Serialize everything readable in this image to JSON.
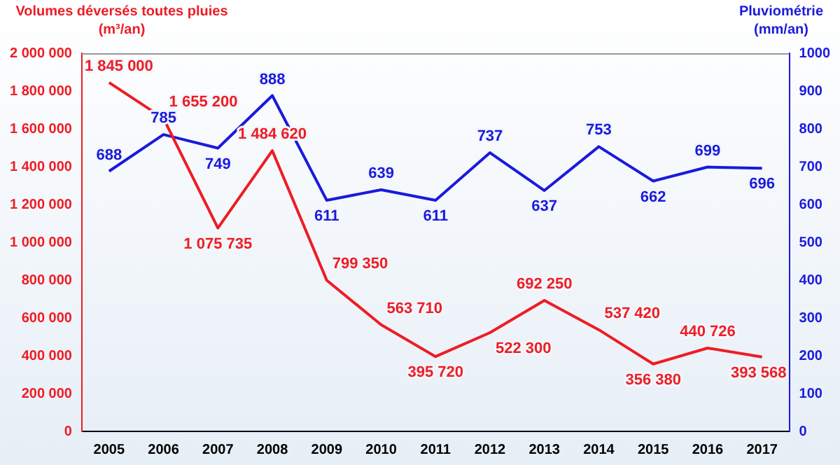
{
  "chart_data": {
    "type": "line",
    "ylabel": "Volumes déversés toutes pluies (m³/an)",
    "y2label": "Pluviométrie (mm/an)",
    "categories": [
      "2005",
      "2006",
      "2007",
      "2008",
      "2009",
      "2010",
      "2011",
      "2012",
      "2013",
      "2014",
      "2015",
      "2016",
      "2017"
    ],
    "series": [
      {
        "color": "#ee1c25",
        "values": [
          1845000,
          1655200,
          1075735,
          1484620,
          799350,
          563710,
          395720,
          522300,
          692250,
          537420,
          356380,
          440726,
          393568
        ],
        "value_labels": [
          "1 845 000",
          "1 655 200",
          "1 075 735",
          "1 484 620",
          "799 350",
          "563 710",
          "395 720",
          "522 300",
          "692 250",
          "537 420",
          "356 380",
          "440 726",
          "393 568"
        ]
      },
      {
        "color": "#1a1adc",
        "axis": "y2",
        "values": [
          688,
          785,
          749,
          888,
          611,
          639,
          611,
          737,
          637,
          753,
          662,
          699,
          696
        ],
        "value_labels": [
          "688",
          "785",
          "749",
          "888",
          "611",
          "639",
          "611",
          "737",
          "637",
          "753",
          "662",
          "699",
          "696"
        ]
      }
    ],
    "ylim": [
      0,
      2000000
    ],
    "yticks": [
      0,
      {
        "value": 200000,
        "label": "200 000"
      },
      {
        "value": 400000,
        "label": "400 000"
      },
      {
        "value": 600000,
        "label": "600 000"
      },
      {
        "value": 800000,
        "label": "800 000"
      },
      {
        "value": 1000000,
        "label": "1 000 000"
      },
      {
        "value": 1200000,
        "label": "1 200 000"
      },
      {
        "value": 1400000,
        "label": "1 400 000"
      },
      {
        "value": 1600000,
        "label": "1 600 000"
      },
      {
        "value": 1800000,
        "label": "1 800 000"
      },
      {
        "value": 2000000,
        "label": "2 000 000"
      }
    ],
    "y2lim": [
      0,
      1000
    ],
    "y2ticks": [
      0,
      100,
      200,
      300,
      400,
      500,
      600,
      700,
      800,
      900,
      1000
    ],
    "grid": false,
    "legend": false,
    "marker": "none",
    "line_style": "solid"
  }
}
